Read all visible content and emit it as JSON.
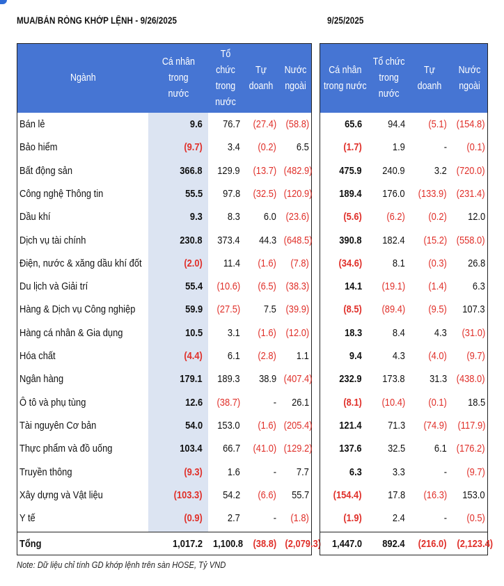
{
  "title_left": "MUA/BÁN RÒNG KHỚP LỆNH - 9/26/2025",
  "title_right": "9/25/2025",
  "left_headers": [
    "Ngành",
    "Cá nhân\ntrong\nnước",
    "Tổ chức\ntrong\nnước",
    "Tự doanh",
    "Nước\nngoài"
  ],
  "right_headers": [
    "Cá nhân\ntrong nước",
    "Tổ chức\ntrong\nnước",
    "Tự doanh",
    "Nước\nngoài"
  ],
  "rows": [
    {
      "sector": "Bán lẻ",
      "d1": [
        "9.6",
        "76.7",
        "(27.4)",
        "(58.8)"
      ],
      "d2": [
        "65.6",
        "94.4",
        "(5.1)",
        "(154.8)"
      ]
    },
    {
      "sector": "Bảo hiểm",
      "d1": [
        "(9.7)",
        "3.4",
        "(0.2)",
        "6.5"
      ],
      "d2": [
        "(1.7)",
        "1.9",
        "-",
        "(0.1)"
      ]
    },
    {
      "sector": "Bất động sản",
      "d1": [
        "366.8",
        "129.9",
        "(13.7)",
        "(482.9)"
      ],
      "d2": [
        "475.9",
        "240.9",
        "3.2",
        "(720.0)"
      ]
    },
    {
      "sector": "Công nghệ Thông tin",
      "d1": [
        "55.5",
        "97.8",
        "(32.5)",
        "(120.9)"
      ],
      "d2": [
        "189.4",
        "176.0",
        "(133.9)",
        "(231.4)"
      ]
    },
    {
      "sector": "Dầu khí",
      "d1": [
        "9.3",
        "8.3",
        "6.0",
        "(23.6)"
      ],
      "d2": [
        "(5.6)",
        "(6.2)",
        "(0.2)",
        "12.0"
      ]
    },
    {
      "sector": "Dịch vụ tài chính",
      "d1": [
        "230.8",
        "373.4",
        "44.3",
        "(648.5)"
      ],
      "d2": [
        "390.8",
        "182.4",
        "(15.2)",
        "(558.0)"
      ]
    },
    {
      "sector": "Điện, nước & xăng dầu khí đốt",
      "d1": [
        "(2.0)",
        "11.4",
        "(1.6)",
        "(7.8)"
      ],
      "d2": [
        "(34.6)",
        "8.1",
        "(0.3)",
        "26.8"
      ]
    },
    {
      "sector": "Du lịch và Giải trí",
      "d1": [
        "55.4",
        "(10.6)",
        "(6.5)",
        "(38.3)"
      ],
      "d2": [
        "14.1",
        "(19.1)",
        "(1.4)",
        "6.3"
      ]
    },
    {
      "sector": "Hàng & Dịch vụ Công nghiệp",
      "d1": [
        "59.9",
        "(27.5)",
        "7.5",
        "(39.9)"
      ],
      "d2": [
        "(8.5)",
        "(89.4)",
        "(9.5)",
        "107.3"
      ]
    },
    {
      "sector": "Hàng cá nhân & Gia dụng",
      "d1": [
        "10.5",
        "3.1",
        "(1.6)",
        "(12.0)"
      ],
      "d2": [
        "18.3",
        "8.4",
        "4.3",
        "(31.0)"
      ]
    },
    {
      "sector": "Hóa chất",
      "d1": [
        "(4.4)",
        "6.1",
        "(2.8)",
        "1.1"
      ],
      "d2": [
        "9.4",
        "4.3",
        "(4.0)",
        "(9.7)"
      ]
    },
    {
      "sector": "Ngân hàng",
      "d1": [
        "179.1",
        "189.3",
        "38.9",
        "(407.4)"
      ],
      "d2": [
        "232.9",
        "173.8",
        "31.3",
        "(438.0)"
      ]
    },
    {
      "sector": "Ô tô và phụ tùng",
      "d1": [
        "12.6",
        "(38.7)",
        "-",
        "26.1"
      ],
      "d2": [
        "(8.1)",
        "(10.4)",
        "(0.1)",
        "18.5"
      ]
    },
    {
      "sector": "Tài nguyên Cơ bản",
      "d1": [
        "54.0",
        "153.0",
        "(1.6)",
        "(205.4)"
      ],
      "d2": [
        "121.4",
        "71.3",
        "(74.9)",
        "(117.9)"
      ]
    },
    {
      "sector": "Thực phẩm và đồ uống",
      "d1": [
        "103.4",
        "66.7",
        "(41.0)",
        "(129.2)"
      ],
      "d2": [
        "137.6",
        "32.5",
        "6.1",
        "(176.2)"
      ]
    },
    {
      "sector": "Truyền thông",
      "d1": [
        "(9.3)",
        "1.6",
        "-",
        "7.7"
      ],
      "d2": [
        "6.3",
        "3.3",
        "-",
        "(9.7)"
      ]
    },
    {
      "sector": "Xây dựng và Vật liệu",
      "d1": [
        "(103.3)",
        "54.2",
        "(6.6)",
        "55.7"
      ],
      "d2": [
        "(154.4)",
        "17.8",
        "(16.3)",
        "153.0"
      ]
    },
    {
      "sector": "Y tế",
      "d1": [
        "(0.9)",
        "2.7",
        "-",
        "(1.8)"
      ],
      "d2": [
        "(1.9)",
        "2.4",
        "-",
        "(0.5)"
      ]
    }
  ],
  "total": {
    "sector": "Tổng",
    "d1": [
      "1,017.2",
      "1,100.8",
      "(38.8)",
      "(2,079.3)"
    ],
    "d2": [
      "1,447.0",
      "892.4",
      "(216.0)",
      "(2,123.4)"
    ]
  },
  "note": "Note: Dữ liệu chỉ tính GD khớp lệnh trên sàn HOSE, Tỷ VND",
  "colors": {
    "header_bg": "#4675d3",
    "shade": "#dce4f2",
    "negative": "#e0302a",
    "accent": "#2e6bd6"
  }
}
